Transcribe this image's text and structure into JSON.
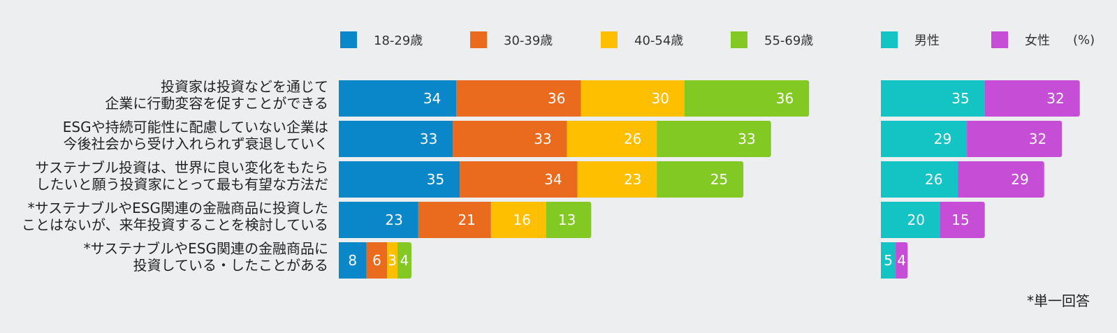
{
  "chart_data": [
    {
      "type": "bar",
      "orientation": "horizontal",
      "stacked": true,
      "categories": [
        "投資家は投資などを通じて\n企業に行動変容を促すことができる",
        "ESGや持続可能性に配慮していない企業は\n今後社会から受け入れられず衰退していく",
        "サステナブル投資は、世界に良い変化をもたら\nしたいと願う投資家にとって最も有望な方法だ",
        "*サステナブルやESG関連の金融商品に投資した\nことはないが、来年投資することを検討している",
        "*サステナブルやESG関連の金融商品に\n投資している・したことがある"
      ],
      "series": [
        {
          "name": "18-29歳",
          "color": "#0a87c9",
          "values": [
            34,
            33,
            35,
            23,
            8
          ]
        },
        {
          "name": "30-39歳",
          "color": "#ea6a1e",
          "values": [
            36,
            33,
            34,
            21,
            6
          ]
        },
        {
          "name": "40-54歳",
          "color": "#fdbf00",
          "values": [
            30,
            26,
            23,
            16,
            3
          ]
        },
        {
          "name": "55-69歳",
          "color": "#83c923",
          "values": [
            36,
            33,
            25,
            13,
            4
          ]
        }
      ]
    },
    {
      "type": "bar",
      "orientation": "horizontal",
      "stacked": true,
      "categories": [
        "投資家は投資などを通じて\n企業に行動変容を促すことができる",
        "ESGや持続可能性に配慮していない企業は\n今後社会から受け入れられず衰退していく",
        "サステナブル投資は、世界に良い変化をもたら\nしたいと願う投資家にとって最も有望な方法だ",
        "*サステナブルやESG関連の金融商品に投資した\nことはないが、来年投資することを検討している",
        "*サステナブルやESG関連の金融商品に\n投資している・したことがある"
      ],
      "series": [
        {
          "name": "男性",
          "color": "#14c4c4",
          "values": [
            35,
            29,
            26,
            20,
            5
          ]
        },
        {
          "name": "女性",
          "color": "#c64ed6",
          "values": [
            32,
            32,
            29,
            15,
            4
          ]
        }
      ]
    }
  ],
  "unit_label": "(%)",
  "note": "*単一回答"
}
